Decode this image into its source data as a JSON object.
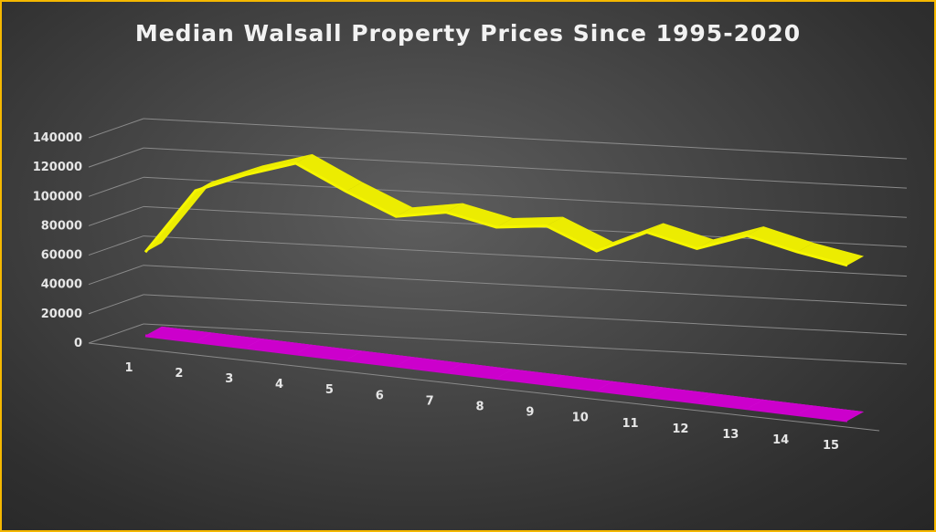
{
  "chart_data": {
    "type": "line",
    "title": "Median Walsall Property Prices Since 1995-2020",
    "categories": [
      "1",
      "2",
      "3",
      "4",
      "5",
      "6",
      "7",
      "8",
      "9",
      "10",
      "11",
      "12",
      "13",
      "14",
      "15"
    ],
    "yticks": [
      "0",
      "20000",
      "40000",
      "60000",
      "80000",
      "100000",
      "120000",
      "140000"
    ],
    "ylim": [
      0,
      140000
    ],
    "series": [
      {
        "values": [
          57000,
          103000,
          118000,
          130000,
          115000,
          102000,
          109000,
          103000,
          108000,
          95000,
          112000,
          105000,
          118000,
          111000,
          106000
        ],
        "color": "#f5f500",
        "side_color": "#9a9a10"
      },
      {
        "values": [
          0,
          0,
          0,
          0,
          0,
          0,
          0,
          0,
          0,
          0,
          0,
          0,
          0,
          0,
          0
        ],
        "color": "#cc00cc",
        "side_color": "#e040e0"
      }
    ],
    "grid": true,
    "legend": "none",
    "style": "3d-line"
  }
}
